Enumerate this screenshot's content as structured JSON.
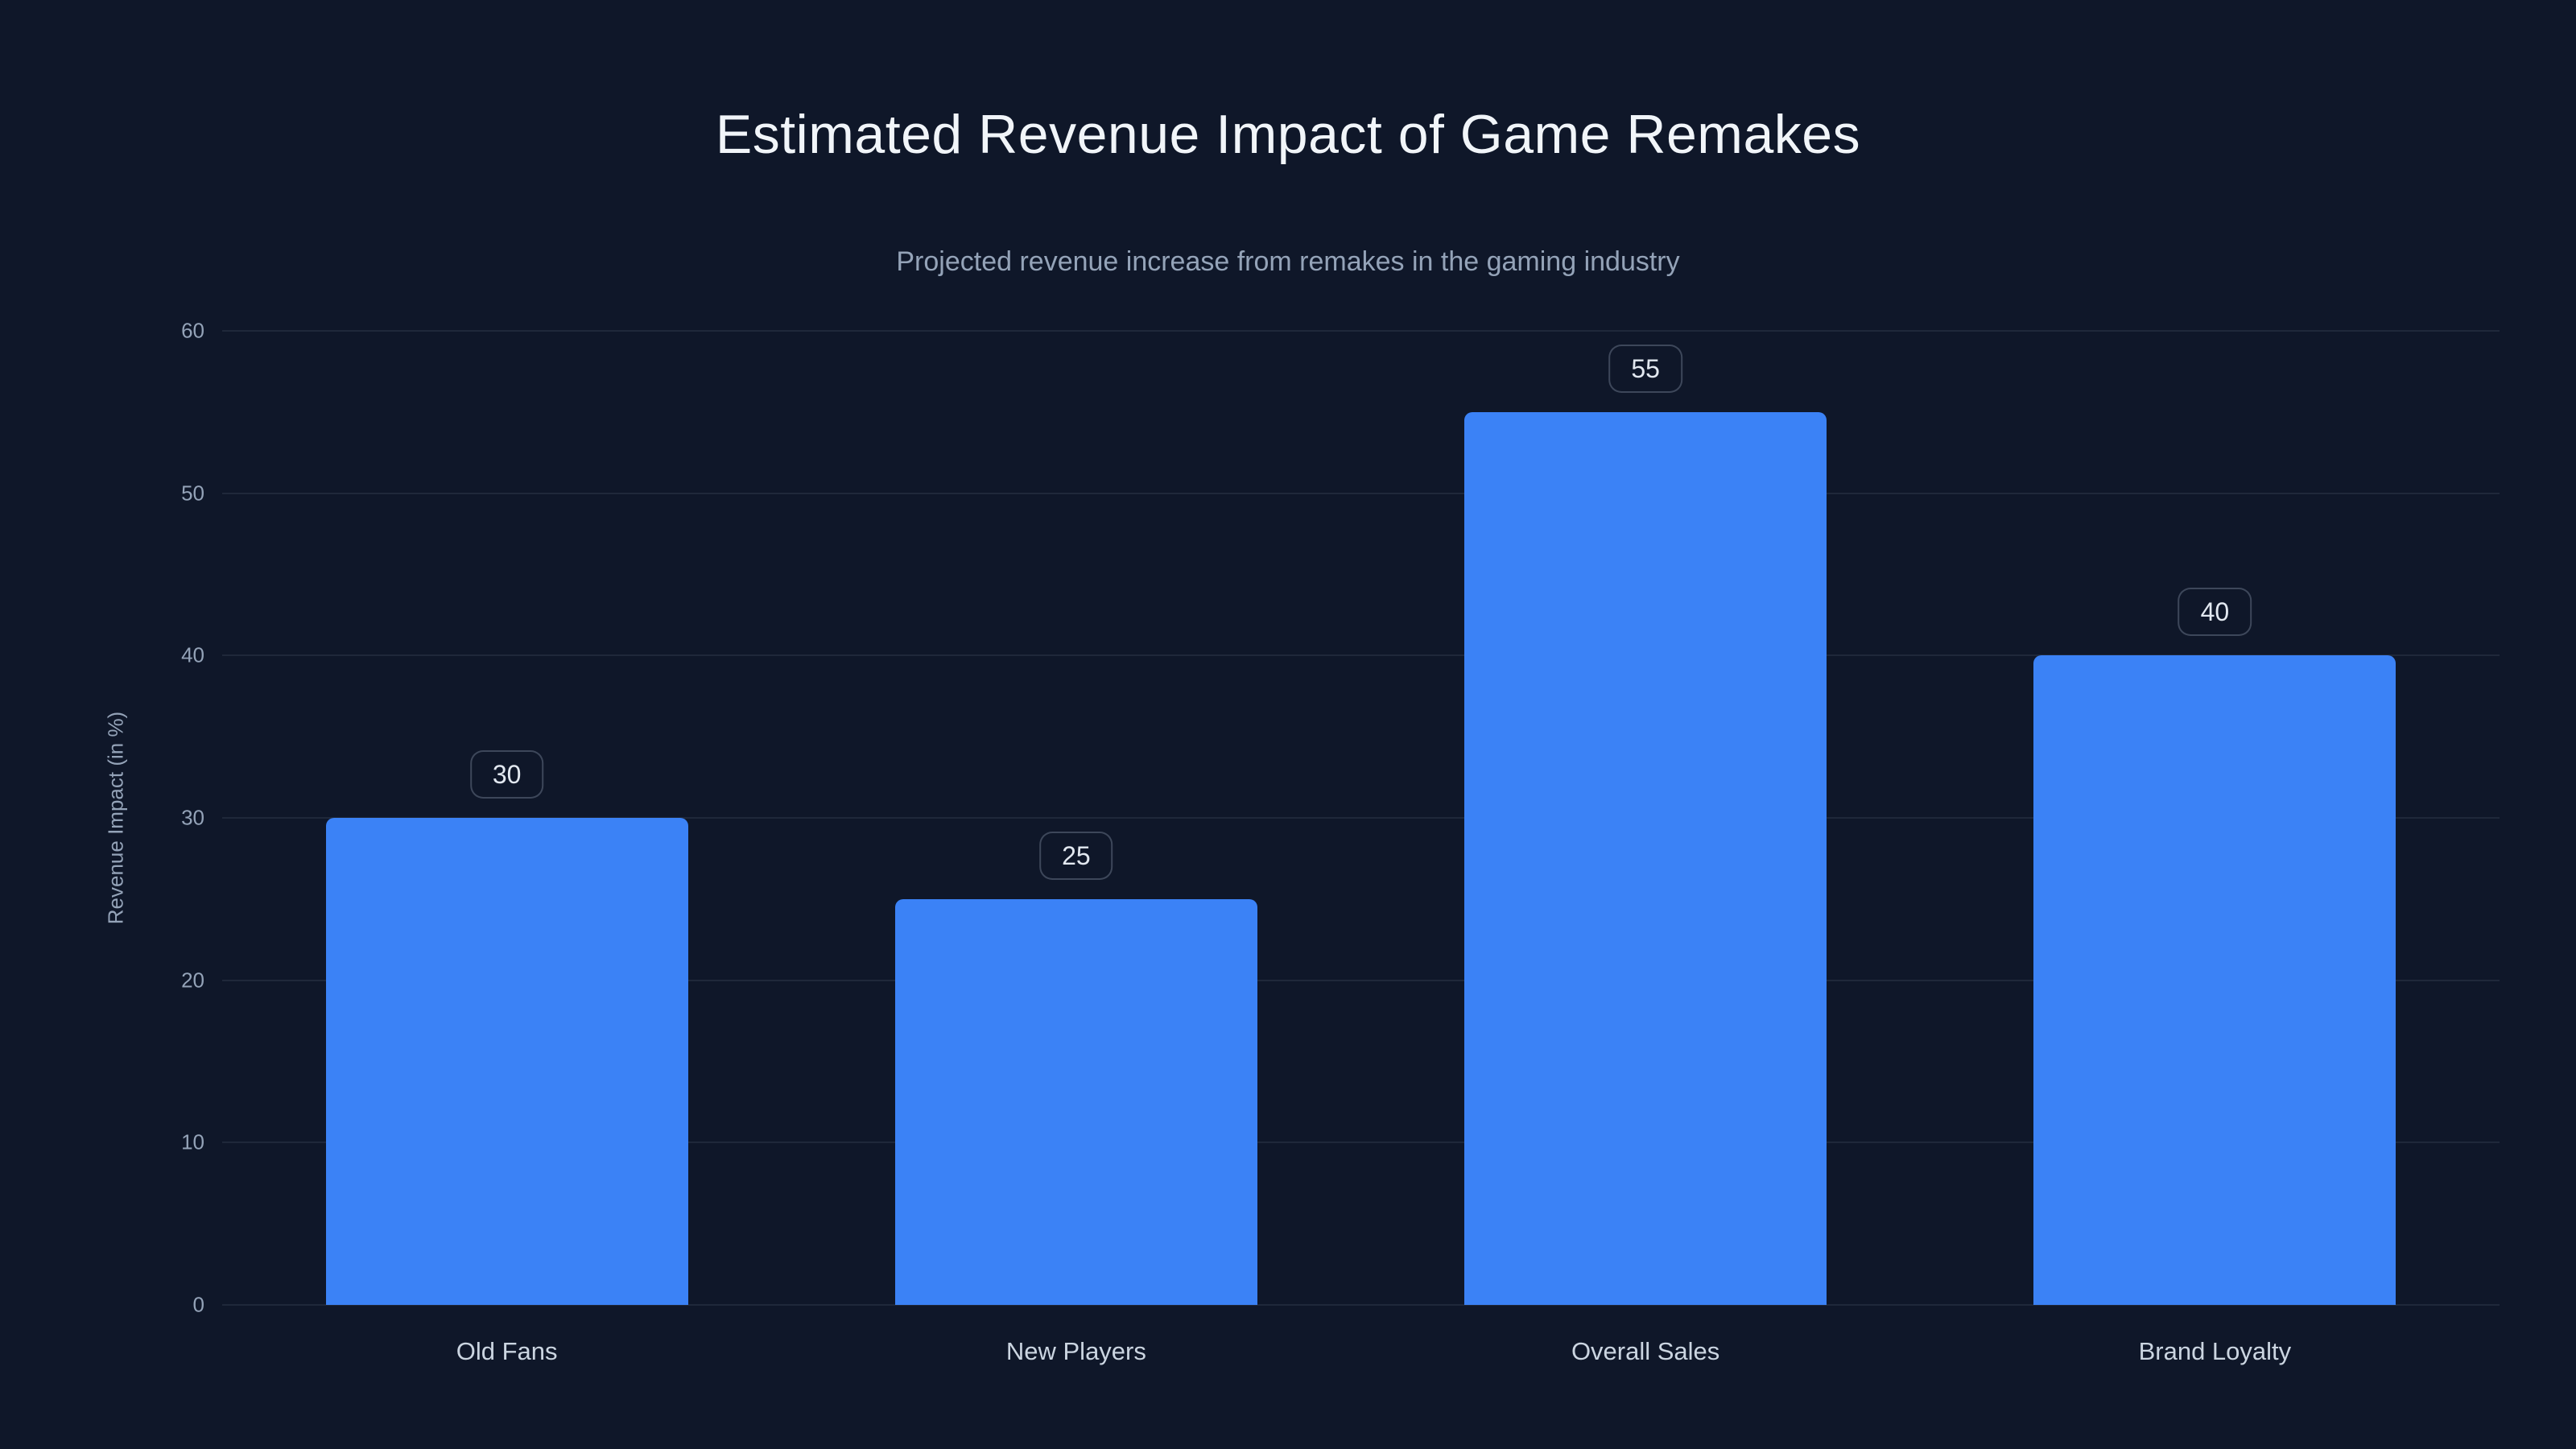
{
  "header": {
    "title": "Estimated Revenue Impact of Game Remakes",
    "subtitle": "Projected revenue increase from remakes in the gaming industry"
  },
  "chart_data": {
    "type": "bar",
    "title": "Estimated Revenue Impact of Game Remakes",
    "subtitle": "Projected revenue increase from remakes in the gaming industry",
    "categories": [
      "Old Fans",
      "New Players",
      "Overall Sales",
      "Brand Loyalty"
    ],
    "values": [
      30,
      25,
      55,
      40
    ],
    "value_labels": [
      30,
      25,
      55,
      40
    ],
    "xlabel": "",
    "ylabel": "Revenue Impact (in %)",
    "ylim": [
      0,
      60
    ],
    "yticks": [
      0,
      10,
      20,
      30,
      40,
      50,
      60
    ],
    "grid": true,
    "legend": false,
    "bar_color": "#3b82f6",
    "background_color": "#0f1729"
  }
}
